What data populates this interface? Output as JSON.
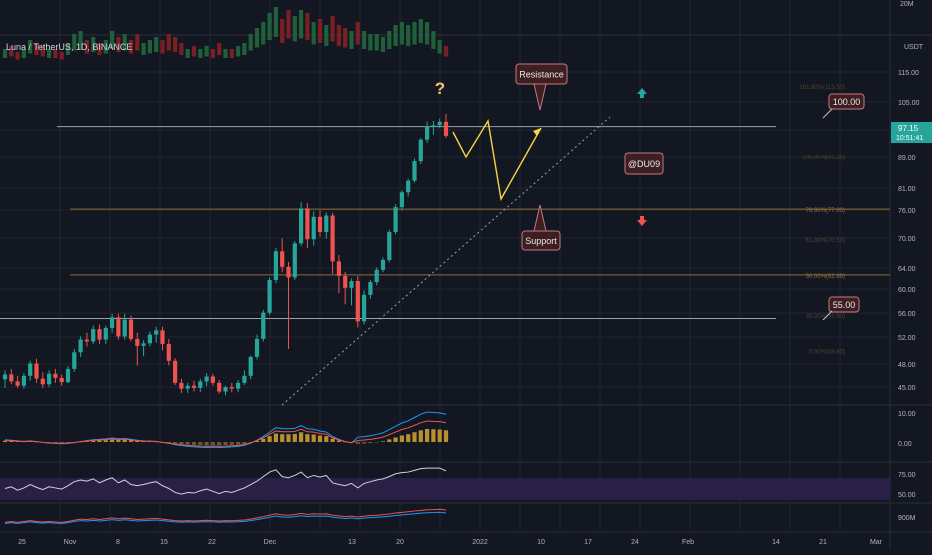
{
  "symbol_line": "Luna / TetherUS, 1D, BINANCE",
  "colors": {
    "bg": "#131722",
    "up": "#26a69a",
    "down": "#ef5350",
    "grid": "#1f2430",
    "text": "#b2b5be",
    "fib": "#8d6e3a",
    "hline": "#9aa0ab",
    "yellow": "#f5d742",
    "label_bg": "#3d1f22",
    "label_border": "#c47a80",
    "price_tag": "#26a69a",
    "macd_line": "#2196f3",
    "signal_line": "#ef5350",
    "rsi_band": "#2a1f45",
    "rsi_line": "#d1d4dc",
    "obv_line": "#ef5350",
    "obv_ma": "#2196f3",
    "volume_up": "#26a69a",
    "volume_down": "#ef5350"
  },
  "right_axis": {
    "top_label": "20M",
    "currency": "USDT",
    "main_ticks": [
      "115.00",
      "105.00",
      "97.00",
      "89.00",
      "81.00",
      "76.00",
      "70.00",
      "64.00",
      "60.00",
      "56.00",
      "52.00",
      "48.00",
      "45.00"
    ],
    "current_price": "97.15",
    "countdown": "10:51:41",
    "macd_ticks": [
      "10.00",
      "0.00"
    ],
    "rsi_ticks": [
      "75.00",
      "50.00"
    ],
    "obv_ticks": [
      "900M"
    ]
  },
  "x_axis": {
    "labels": [
      "25",
      "Nov",
      "8",
      "15",
      "22",
      "Dec",
      "13",
      "20",
      "2022",
      "10",
      "17",
      "24",
      "Feb",
      "14",
      "21",
      "Mar"
    ]
  },
  "annotations": {
    "question": "?",
    "resistance": "Resistance",
    "support": "Support",
    "author": "@DU09",
    "level_high": "100.00",
    "level_low": "55.00"
  },
  "fib_levels": [
    {
      "price": 113.5,
      "label": "161.80%(113.50)"
    },
    {
      "price": 91.2,
      "label": "100.00%(91.20)"
    },
    {
      "price": 77.33,
      "label": "78.60%(77.33)"
    },
    {
      "price": 70.5,
      "label": "61.80%(70.50)"
    },
    {
      "price": 62.99,
      "label": "50.00%(62.99)"
    },
    {
      "price": 55.6,
      "label": "38.20%(55.60)"
    },
    {
      "price": 49.8,
      "label": "0.00%(49.80)"
    }
  ],
  "chart_data": {
    "type": "candlestick",
    "title": "Luna / TetherUS, 1D, BINANCE",
    "y_scale": "log",
    "ylim": [
      42,
      125
    ],
    "horizontal_levels": [
      100.0,
      55.0
    ],
    "candles": [
      [
        45.5,
        46.8,
        44.3,
        46.2
      ],
      [
        46.2,
        47.0,
        44.8,
        45.2
      ],
      [
        45.2,
        46.0,
        44.3,
        44.6
      ],
      [
        44.6,
        46.4,
        44.2,
        46.0
      ],
      [
        46.0,
        48.2,
        45.3,
        47.8
      ],
      [
        47.8,
        48.5,
        45.0,
        45.6
      ],
      [
        45.6,
        46.5,
        44.3,
        44.8
      ],
      [
        44.8,
        46.8,
        44.4,
        46.3
      ],
      [
        46.3,
        47.0,
        45.0,
        45.7
      ],
      [
        45.7,
        46.2,
        44.6,
        45.1
      ],
      [
        45.1,
        47.4,
        45.0,
        47.0
      ],
      [
        47.0,
        50.0,
        46.6,
        49.5
      ],
      [
        49.5,
        52.0,
        48.8,
        51.5
      ],
      [
        51.5,
        52.6,
        50.4,
        51.2
      ],
      [
        51.2,
        53.8,
        50.8,
        53.2
      ],
      [
        53.2,
        54.0,
        50.8,
        51.5
      ],
      [
        51.5,
        53.8,
        50.8,
        53.4
      ],
      [
        53.4,
        55.8,
        52.6,
        55.2
      ],
      [
        55.2,
        55.8,
        51.5,
        52.0
      ],
      [
        52.0,
        55.8,
        51.5,
        54.8
      ],
      [
        54.8,
        55.5,
        51.2,
        51.6
      ],
      [
        51.6,
        52.6,
        47.5,
        50.5
      ],
      [
        50.5,
        51.4,
        48.9,
        50.9
      ],
      [
        50.9,
        52.8,
        50.4,
        52.3
      ],
      [
        52.3,
        53.6,
        51.0,
        53.0
      ],
      [
        53.0,
        53.6,
        49.8,
        50.8
      ],
      [
        50.8,
        51.6,
        47.5,
        48.2
      ],
      [
        48.2,
        48.6,
        44.7,
        45.0
      ],
      [
        45.0,
        45.6,
        43.6,
        44.2
      ],
      [
        44.2,
        45.0,
        43.6,
        44.6
      ],
      [
        44.6,
        45.3,
        43.8,
        44.3
      ],
      [
        44.3,
        45.6,
        43.7,
        45.2
      ],
      [
        45.2,
        46.4,
        44.5,
        45.9
      ],
      [
        45.9,
        46.3,
        44.6,
        45.0
      ],
      [
        45.0,
        45.4,
        43.5,
        43.8
      ],
      [
        43.8,
        44.6,
        43.3,
        44.4
      ],
      [
        44.4,
        45.0,
        43.7,
        44.2
      ],
      [
        44.2,
        45.4,
        43.7,
        45.0
      ],
      [
        45.0,
        46.8,
        44.7,
        46.0
      ],
      [
        46.0,
        49.0,
        45.5,
        48.8
      ],
      [
        48.8,
        52.3,
        48.4,
        51.6
      ],
      [
        51.6,
        56.5,
        51.2,
        56.0
      ],
      [
        56.0,
        62.5,
        55.6,
        62.0
      ],
      [
        62.0,
        68.5,
        61.4,
        67.8
      ],
      [
        67.8,
        70.6,
        63.5,
        64.6
      ],
      [
        64.6,
        65.6,
        50.0,
        62.5
      ],
      [
        62.5,
        70.0,
        62.0,
        69.5
      ],
      [
        69.5,
        79.0,
        69.0,
        77.5
      ],
      [
        77.5,
        78.8,
        68.5,
        70.4
      ],
      [
        70.4,
        76.8,
        69.0,
        75.5
      ],
      [
        75.5,
        77.0,
        71.0,
        72.0
      ],
      [
        72.0,
        76.5,
        70.5,
        75.8
      ],
      [
        75.8,
        76.5,
        63.2,
        65.7
      ],
      [
        65.7,
        67.0,
        59.5,
        62.8
      ],
      [
        62.8,
        63.6,
        57.5,
        60.5
      ],
      [
        60.5,
        62.3,
        57.3,
        61.8
      ],
      [
        61.8,
        62.8,
        53.5,
        54.5
      ],
      [
        54.5,
        60.0,
        54.0,
        59.2
      ],
      [
        59.2,
        62.0,
        58.5,
        61.6
      ],
      [
        61.6,
        64.5,
        61.0,
        64.0
      ],
      [
        64.0,
        66.5,
        63.5,
        66.0
      ],
      [
        66.0,
        72.5,
        65.5,
        72.0
      ],
      [
        72.0,
        78.5,
        71.5,
        77.8
      ],
      [
        77.8,
        82.0,
        77.0,
        81.5
      ],
      [
        81.5,
        85.0,
        80.5,
        84.5
      ],
      [
        84.5,
        90.5,
        84.0,
        89.8
      ],
      [
        89.8,
        96.5,
        89.0,
        96.0
      ],
      [
        96.0,
        101.5,
        95.0,
        100.0
      ],
      [
        100.0,
        101.8,
        97.5,
        100.4
      ],
      [
        100.4,
        102.5,
        99.5,
        101.5
      ],
      [
        101.5,
        104.0,
        96.5,
        97.15
      ]
    ],
    "volume_bars": [
      0.3,
      0.35,
      0.25,
      0.3,
      0.45,
      0.4,
      0.35,
      0.3,
      0.3,
      0.25,
      0.4,
      0.55,
      0.6,
      0.45,
      0.5,
      0.4,
      0.45,
      0.6,
      0.5,
      0.55,
      0.45,
      0.55,
      0.4,
      0.45,
      0.5,
      0.45,
      0.55,
      0.5,
      0.4,
      0.3,
      0.35,
      0.3,
      0.35,
      0.3,
      0.4,
      0.3,
      0.3,
      0.35,
      0.4,
      0.55,
      0.65,
      0.75,
      0.9,
      1.0,
      0.8,
      0.95,
      0.85,
      0.95,
      0.9,
      0.75,
      0.8,
      0.7,
      0.85,
      0.7,
      0.65,
      0.6,
      0.75,
      0.6,
      0.55,
      0.55,
      0.5,
      0.6,
      0.7,
      0.75,
      0.7,
      0.75,
      0.8,
      0.75,
      0.6,
      0.45,
      0.35
    ],
    "macd_hist": [
      0.1,
      0.08,
      0.05,
      0.03,
      0.05,
      0.02,
      -0.02,
      -0.05,
      -0.06,
      -0.08,
      -0.06,
      -0.03,
      0.02,
      0.06,
      0.1,
      0.12,
      0.14,
      0.18,
      0.15,
      0.16,
      0.12,
      0.08,
      0.05,
      0.04,
      0.03,
      -0.02,
      -0.06,
      -0.12,
      -0.16,
      -0.2,
      -0.22,
      -0.24,
      -0.25,
      -0.24,
      -0.25,
      -0.24,
      -0.22,
      -0.2,
      -0.15,
      -0.05,
      0.08,
      0.25,
      0.45,
      0.65,
      0.6,
      0.6,
      0.62,
      0.75,
      0.6,
      0.58,
      0.5,
      0.45,
      0.25,
      0.12,
      0.02,
      -0.04,
      -0.15,
      -0.12,
      -0.08,
      -0.02,
      0.05,
      0.2,
      0.35,
      0.5,
      0.6,
      0.75,
      0.9,
      1.0,
      0.98,
      0.96,
      0.9
    ],
    "rsi": [
      45,
      48,
      42,
      46,
      52,
      47,
      43,
      48,
      46,
      44,
      50,
      57,
      60,
      58,
      62,
      55,
      60,
      64,
      55,
      60,
      52,
      50,
      52,
      55,
      57,
      50,
      45,
      38,
      35,
      38,
      37,
      41,
      44,
      40,
      36,
      40,
      38,
      42,
      46,
      52,
      58,
      66,
      74,
      78,
      66,
      64,
      68,
      74,
      64,
      68,
      65,
      68,
      55,
      52,
      50,
      54,
      46,
      54,
      57,
      60,
      62,
      66,
      71,
      73,
      74,
      77,
      80,
      81,
      81,
      81,
      76
    ],
    "obv": [
      0.2,
      0.25,
      0.2,
      0.25,
      0.3,
      0.25,
      0.22,
      0.25,
      0.22,
      0.2,
      0.25,
      0.32,
      0.38,
      0.36,
      0.4,
      0.36,
      0.4,
      0.45,
      0.4,
      0.44,
      0.4,
      0.36,
      0.38,
      0.4,
      0.42,
      0.38,
      0.34,
      0.3,
      0.28,
      0.3,
      0.28,
      0.3,
      0.32,
      0.3,
      0.28,
      0.3,
      0.29,
      0.31,
      0.33,
      0.38,
      0.45,
      0.52,
      0.6,
      0.68,
      0.62,
      0.6,
      0.64,
      0.7,
      0.64,
      0.68,
      0.66,
      0.68,
      0.6,
      0.56,
      0.52,
      0.55,
      0.5,
      0.55,
      0.58,
      0.6,
      0.63,
      0.67,
      0.72,
      0.76,
      0.79,
      0.83,
      0.87,
      0.9,
      0.91,
      0.93,
      0.88
    ]
  }
}
